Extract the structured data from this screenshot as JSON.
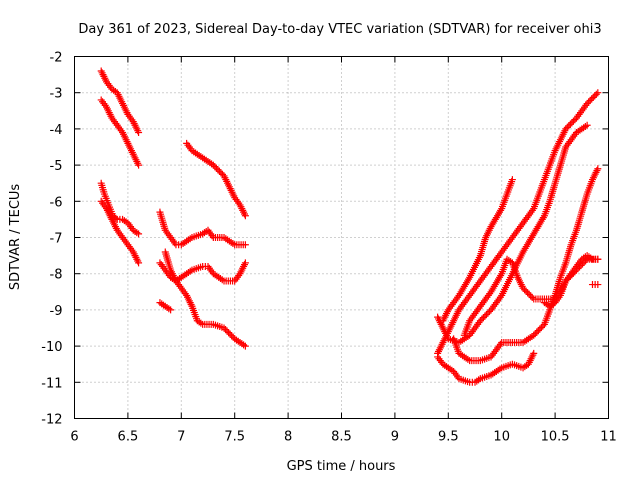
{
  "chart_data": {
    "type": "scatter",
    "title": "Day 361 of 2023, Sidereal Day-to-day VTEC variation (SDTVAR) for receiver ohi3",
    "xlabel": "GPS time / hours",
    "ylabel": "SDTVAR / TECUs",
    "xlim": [
      6,
      11
    ],
    "ylim": [
      -12,
      -2
    ],
    "xticks": [
      "6",
      "6.5",
      "7",
      "7.5",
      "8",
      "8.5",
      "9",
      "9.5",
      "10",
      "10.5",
      "11"
    ],
    "yticks": [
      "-2",
      "-3",
      "-4",
      "-5",
      "-6",
      "-7",
      "-8",
      "-9",
      "-10",
      "-11",
      "-12"
    ],
    "grid": true,
    "marker": "+",
    "color": "#ff0000",
    "series": [
      {
        "name": "s1",
        "x": [
          6.25,
          6.3,
          6.35,
          6.4,
          6.45,
          6.5,
          6.55,
          6.6
        ],
        "y": [
          -2.4,
          -2.7,
          -2.9,
          -3.0,
          -3.3,
          -3.6,
          -3.8,
          -4.1
        ]
      },
      {
        "name": "s2",
        "x": [
          6.25,
          6.3,
          6.35,
          6.4,
          6.45,
          6.5,
          6.55,
          6.6
        ],
        "y": [
          -3.2,
          -3.4,
          -3.7,
          -3.9,
          -4.1,
          -4.4,
          -4.7,
          -5.0
        ]
      },
      {
        "name": "s3",
        "x": [
          6.25,
          6.28,
          6.32,
          6.36,
          6.4,
          6.45,
          6.5,
          6.55,
          6.6
        ],
        "y": [
          -5.5,
          -5.8,
          -6.1,
          -6.4,
          -6.5,
          -6.5,
          -6.6,
          -6.8,
          -6.9
        ]
      },
      {
        "name": "s4",
        "x": [
          6.25,
          6.3,
          6.35,
          6.4,
          6.45,
          6.5,
          6.55,
          6.6
        ],
        "y": [
          -6.0,
          -6.2,
          -6.5,
          -6.8,
          -7.0,
          -7.2,
          -7.4,
          -7.7
        ]
      },
      {
        "name": "s5",
        "x": [
          6.8,
          6.85,
          6.9,
          6.95,
          7.0,
          7.1,
          7.2,
          7.25,
          7.3,
          7.4,
          7.5,
          7.6
        ],
        "y": [
          -6.3,
          -6.8,
          -7.0,
          -7.2,
          -7.2,
          -7.0,
          -6.9,
          -6.8,
          -7.0,
          -7.0,
          -7.2,
          -7.2
        ]
      },
      {
        "name": "s6",
        "x": [
          6.8,
          6.85,
          6.9,
          6.95,
          7.0,
          7.1,
          7.2,
          7.25,
          7.3,
          7.4,
          7.5,
          7.55,
          7.6
        ],
        "y": [
          -7.7,
          -7.9,
          -8.1,
          -8.2,
          -8.1,
          -7.9,
          -7.8,
          -7.8,
          -8.0,
          -8.2,
          -8.2,
          -8.0,
          -7.7
        ]
      },
      {
        "name": "s7",
        "x": [
          6.8,
          6.85,
          6.9
        ],
        "y": [
          -8.8,
          -8.9,
          -9.0
        ]
      },
      {
        "name": "s8",
        "x": [
          6.85,
          6.9,
          6.95,
          7.0,
          7.05,
          7.1,
          7.15,
          7.2,
          7.3,
          7.4,
          7.5,
          7.55,
          7.6
        ],
        "y": [
          -7.4,
          -7.9,
          -8.2,
          -8.4,
          -8.6,
          -8.9,
          -9.3,
          -9.4,
          -9.4,
          -9.5,
          -9.8,
          -9.9,
          -10.0
        ]
      },
      {
        "name": "s9",
        "x": [
          7.05,
          7.1,
          7.2,
          7.3,
          7.4,
          7.45,
          7.5,
          7.55,
          7.6
        ],
        "y": [
          -4.4,
          -4.6,
          -4.8,
          -5.0,
          -5.3,
          -5.6,
          -5.9,
          -6.1,
          -6.4
        ]
      },
      {
        "name": "s10",
        "x": [
          9.4,
          9.45,
          9.5,
          9.55,
          9.6,
          9.65,
          9.7,
          9.8,
          9.9,
          10.0,
          10.1,
          10.2,
          10.3,
          10.35,
          10.4,
          10.45,
          10.5,
          10.55,
          10.6,
          10.7,
          10.8,
          10.9
        ],
        "y": [
          -10.2,
          -9.9,
          -9.6,
          -9.3,
          -9.0,
          -8.8,
          -8.6,
          -8.2,
          -7.8,
          -7.4,
          -7.0,
          -6.6,
          -6.2,
          -5.8,
          -5.4,
          -5.0,
          -4.6,
          -4.3,
          -4.0,
          -3.7,
          -3.3,
          -3.0
        ]
      },
      {
        "name": "s11",
        "x": [
          9.45,
          9.5,
          9.55,
          9.6,
          9.7,
          9.8,
          9.85,
          9.9,
          10.0,
          10.05,
          10.1
        ],
        "y": [
          -9.3,
          -9.0,
          -8.8,
          -8.6,
          -8.1,
          -7.5,
          -7.0,
          -6.7,
          -6.2,
          -5.8,
          -5.4
        ]
      },
      {
        "name": "s12",
        "x": [
          9.4,
          9.45,
          9.5,
          9.6,
          9.7,
          9.8,
          9.9,
          10.0,
          10.1,
          10.2,
          10.3,
          10.4,
          10.45,
          10.5,
          10.55,
          10.6,
          10.7,
          10.8
        ],
        "y": [
          -9.2,
          -9.5,
          -9.8,
          -9.9,
          -9.7,
          -9.3,
          -9.0,
          -8.6,
          -8.0,
          -7.4,
          -6.9,
          -6.4,
          -6.0,
          -5.5,
          -5.0,
          -4.5,
          -4.1,
          -3.9
        ]
      },
      {
        "name": "s13",
        "x": [
          9.4,
          9.45,
          9.5,
          9.55,
          9.6,
          9.7,
          9.75,
          9.8,
          9.9,
          10.0,
          10.1,
          10.2,
          10.25,
          10.3
        ],
        "y": [
          -10.3,
          -10.5,
          -10.6,
          -10.7,
          -10.9,
          -11.0,
          -11.0,
          -10.9,
          -10.8,
          -10.6,
          -10.5,
          -10.6,
          -10.5,
          -10.2
        ]
      },
      {
        "name": "s14",
        "x": [
          9.55,
          9.6,
          9.7,
          9.8,
          9.9,
          10.0,
          10.1,
          10.2,
          10.3,
          10.4,
          10.45,
          10.5,
          10.55,
          10.6,
          10.65,
          10.7,
          10.75,
          10.8,
          10.85,
          10.9
        ],
        "y": [
          -9.8,
          -10.2,
          -10.4,
          -10.4,
          -10.3,
          -9.9,
          -9.9,
          -9.9,
          -9.7,
          -9.4,
          -9.0,
          -8.6,
          -8.1,
          -7.7,
          -7.2,
          -6.8,
          -6.3,
          -5.8,
          -5.4,
          -5.1
        ]
      },
      {
        "name": "s15",
        "x": [
          9.65,
          9.7,
          9.8,
          9.9,
          10.0,
          10.05,
          10.1,
          10.15,
          10.2,
          10.3,
          10.4,
          10.5,
          10.55,
          10.6,
          10.7,
          10.8,
          10.9
        ],
        "y": [
          -9.7,
          -9.3,
          -8.9,
          -8.5,
          -8.0,
          -7.6,
          -7.7,
          -8.1,
          -8.4,
          -8.7,
          -8.7,
          -8.7,
          -8.5,
          -8.2,
          -7.9,
          -7.6,
          -7.6
        ]
      },
      {
        "name": "s16",
        "x": [
          10.4,
          10.45,
          10.5,
          10.55,
          10.6,
          10.65,
          10.7,
          10.75,
          10.8,
          10.85,
          10.9
        ],
        "y": [
          -8.8,
          -8.9,
          -8.8,
          -8.6,
          -8.2,
          -8.0,
          -7.8,
          -7.6,
          -7.5,
          -7.6,
          -7.6
        ]
      },
      {
        "name": "s17",
        "x": [
          10.85,
          10.9
        ],
        "y": [
          -8.3,
          -8.3
        ]
      }
    ]
  }
}
